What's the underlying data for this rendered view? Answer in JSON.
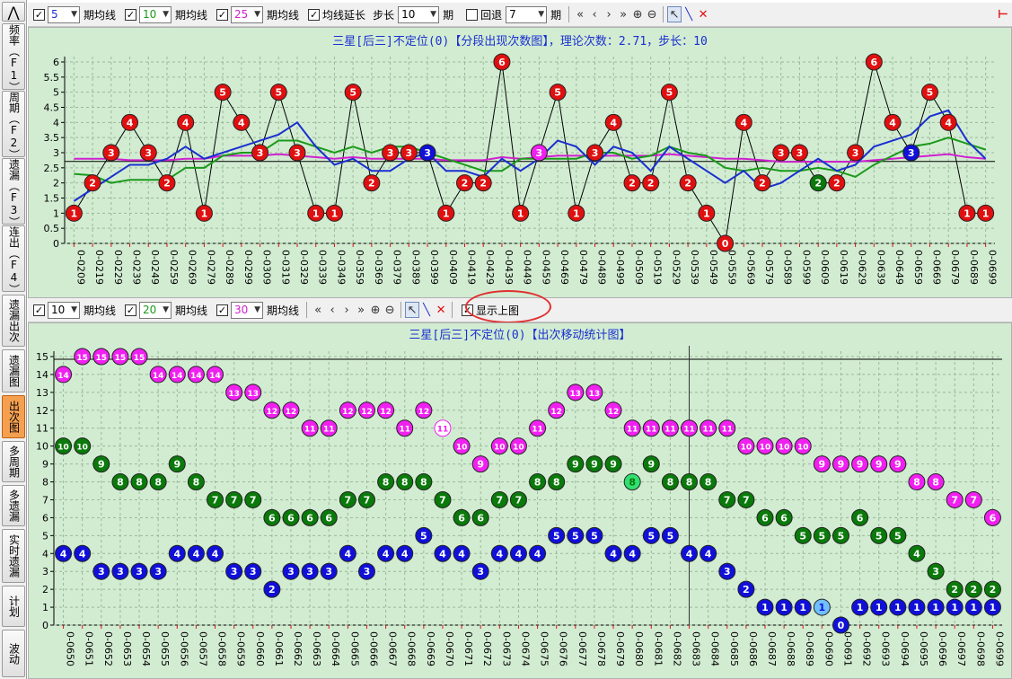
{
  "sidebar": {
    "items": [
      {
        "label": "⋀",
        "active": false
      },
      {
        "label": "频率（F1）",
        "active": false
      },
      {
        "label": "周期（F2）",
        "active": false
      },
      {
        "label": "遗漏（F3）",
        "active": false
      },
      {
        "label": "连出（F4）",
        "active": false
      },
      {
        "label": "遗漏出次",
        "active": false
      },
      {
        "label": "遗漏图",
        "active": false
      },
      {
        "label": "出次图",
        "active": true
      },
      {
        "label": "多周期",
        "active": false
      },
      {
        "label": "多遗漏",
        "active": false
      },
      {
        "label": "实时遗漏",
        "active": false
      },
      {
        "label": "计划",
        "active": false
      },
      {
        "label": "波动",
        "active": false
      }
    ]
  },
  "toolbar1": {
    "ma1": {
      "value": "5",
      "label": "期均线",
      "color": "#1a2fd0"
    },
    "ma2": {
      "value": "10",
      "label": "期均线",
      "color": "#1a9a1a"
    },
    "ma3": {
      "value": "25",
      "label": "期均线",
      "color": "#d020d0"
    },
    "extend_label": "均线延长",
    "step_label": "步长",
    "step_value": "10",
    "step_unit": "期",
    "back_label": "回退",
    "back_value": "7",
    "back_unit": "期"
  },
  "toolbar2": {
    "ma1": {
      "value": "10",
      "label": "期均线",
      "color": "#000000"
    },
    "ma2": {
      "value": "20",
      "label": "期均线",
      "color": "#1a9a1a"
    },
    "ma3": {
      "value": "30",
      "label": "期均线",
      "color": "#d020d0"
    },
    "show_top_label": "显示上图"
  },
  "colors": {
    "bg": "#d2ecd2",
    "red": "#e01010",
    "blue": "#1010d8",
    "green": "#0a7a0a",
    "magenta": "#f020f0",
    "title": "#1a2fd0"
  },
  "chart_data": [
    {
      "type": "line",
      "title": "三星[后三]不定位(0)【分段出现次数图】，理论次数：2.71，步长：10",
      "ylim": [
        0,
        6
      ],
      "yticks": [
        "0",
        "0.5",
        "1",
        "1.5",
        "2",
        "2.5",
        "3",
        "3.5",
        "4",
        "4.5",
        "5",
        "5.5",
        "6"
      ],
      "reference_value": 2.71,
      "x": [
        "0-0209",
        "0-0219",
        "0-0229",
        "0-0239",
        "0-0249",
        "0-0259",
        "0-0269",
        "0-0279",
        "0-0289",
        "0-0299",
        "0-0309",
        "0-0319",
        "0-0329",
        "0-0339",
        "0-0349",
        "0-0359",
        "0-0369",
        "0-0379",
        "0-0389",
        "0-0399",
        "0-0409",
        "0-0419",
        "0-0429",
        "0-0439",
        "0-0449",
        "0-0459",
        "0-0469",
        "0-0479",
        "0-0489",
        "0-0499",
        "0-0509",
        "0-0519",
        "0-0529",
        "0-0539",
        "0-0549",
        "0-0559",
        "0-0569",
        "0-0579",
        "0-0589",
        "0-0599",
        "0-0609",
        "0-0619",
        "0-0629",
        "0-0639",
        "0-0649",
        "0-0659",
        "0-0669",
        "0-0679",
        "0-0689",
        "0-0699"
      ],
      "values": [
        1,
        2,
        3,
        4,
        3,
        2,
        4,
        1,
        5,
        4,
        3,
        5,
        3,
        1,
        1,
        5,
        2,
        3,
        3,
        3,
        1,
        2,
        2,
        6,
        1,
        3,
        5,
        1,
        3,
        4,
        2,
        2,
        5,
        2,
        1,
        0,
        4,
        2,
        3,
        3,
        2,
        2,
        3,
        6,
        4,
        3,
        5,
        4,
        1,
        1
      ],
      "point_colors": [
        "r",
        "r",
        "r",
        "r",
        "r",
        "r",
        "r",
        "r",
        "r",
        "r",
        "r",
        "r",
        "r",
        "r",
        "r",
        "r",
        "r",
        "r",
        "r",
        "b",
        "r",
        "r",
        "r",
        "r",
        "r",
        "m",
        "r",
        "r",
        "r",
        "r",
        "r",
        "r",
        "r",
        "r",
        "r",
        "r",
        "r",
        "r",
        "r",
        "r",
        "g",
        "r",
        "r",
        "r",
        "r",
        "b",
        "r",
        "r",
        "r",
        "r"
      ],
      "series": [
        {
          "name": "5期均线",
          "color": "#1a2fd0",
          "values": [
            1.4,
            1.8,
            2.2,
            2.6,
            2.6,
            2.8,
            3.2,
            2.8,
            3.0,
            3.2,
            3.4,
            3.6,
            4.0,
            3.2,
            2.6,
            2.8,
            2.4,
            2.4,
            2.8,
            3.0,
            2.4,
            2.4,
            2.2,
            2.8,
            2.4,
            2.8,
            3.4,
            3.2,
            2.6,
            3.2,
            3.0,
            2.4,
            3.2,
            2.8,
            2.4,
            2.0,
            2.4,
            1.8,
            2.0,
            2.4,
            2.8,
            2.4,
            2.6,
            3.2,
            3.4,
            3.6,
            4.2,
            4.4,
            3.4,
            2.8
          ]
        },
        {
          "name": "10期均线",
          "color": "#1a9a1a",
          "values": [
            2.3,
            2.25,
            2.0,
            2.1,
            2.1,
            2.1,
            2.5,
            2.5,
            2.9,
            3.0,
            3.0,
            3.4,
            3.4,
            3.2,
            3.0,
            3.2,
            3.0,
            3.2,
            3.2,
            3.0,
            2.8,
            2.6,
            2.4,
            2.4,
            2.8,
            2.8,
            2.8,
            2.8,
            3.0,
            3.0,
            2.8,
            2.9,
            3.2,
            3.0,
            2.9,
            2.5,
            2.4,
            2.5,
            2.4,
            2.4,
            2.5,
            2.4,
            2.2,
            2.6,
            2.9,
            3.2,
            3.3,
            3.5,
            3.3,
            3.1
          ]
        },
        {
          "name": "25期均线",
          "color": "#d020d0",
          "values": [
            2.8,
            2.8,
            2.8,
            2.75,
            2.75,
            2.75,
            2.8,
            2.8,
            2.9,
            2.9,
            2.9,
            2.95,
            2.9,
            2.85,
            2.8,
            2.85,
            2.8,
            2.8,
            2.8,
            2.8,
            2.75,
            2.75,
            2.75,
            2.85,
            2.8,
            2.85,
            2.9,
            2.9,
            2.9,
            2.9,
            2.9,
            2.9,
            2.95,
            2.9,
            2.85,
            2.8,
            2.8,
            2.75,
            2.7,
            2.7,
            2.7,
            2.7,
            2.7,
            2.75,
            2.8,
            2.85,
            2.9,
            2.95,
            2.85,
            2.8
          ]
        }
      ]
    },
    {
      "type": "line",
      "title": "三星[后三]不定位(0)【出次移动统计图】",
      "ylim": [
        0,
        15
      ],
      "yticks": [
        "0",
        "1",
        "2",
        "3",
        "4",
        "5",
        "6",
        "7",
        "8",
        "9",
        "10",
        "11",
        "12",
        "13",
        "14",
        "15"
      ],
      "hline": 14.85,
      "vline_index": 33,
      "x": [
        "0-0650",
        "0-0651",
        "0-0652",
        "0-0653",
        "0-0654",
        "0-0655",
        "0-0656",
        "0-0657",
        "0-0658",
        "0-0659",
        "0-0660",
        "0-0661",
        "0-0662",
        "0-0663",
        "0-0664",
        "0-0665",
        "0-0666",
        "0-0667",
        "0-0668",
        "0-0669",
        "0-0670",
        "0-0671",
        "0-0672",
        "0-0673",
        "0-0674",
        "0-0675",
        "0-0676",
        "0-0677",
        "0-0678",
        "0-0679",
        "0-0680",
        "0-0681",
        "0-0682",
        "0-0683",
        "0-0684",
        "0-0685",
        "0-0686",
        "0-0687",
        "0-0688",
        "0-0689",
        "0-0690",
        "0-0691",
        "0-0692",
        "0-0693",
        "0-0694",
        "0-0695",
        "0-0696",
        "0-0697",
        "0-0698",
        "0-0699"
      ],
      "series": [
        {
          "name": "30期",
          "color": "#f020f0",
          "values": [
            14,
            15,
            15,
            15,
            15,
            14,
            14,
            14,
            14,
            13,
            13,
            12,
            12,
            11,
            11,
            12,
            12,
            12,
            11,
            12,
            11,
            10,
            9,
            10,
            10,
            11,
            12,
            13,
            13,
            12,
            11,
            11,
            11,
            11,
            11,
            11,
            10,
            10,
            10,
            10,
            9,
            9,
            9,
            9,
            9,
            8,
            8,
            7,
            7,
            6
          ],
          "hollow_index": 20
        },
        {
          "name": "20期",
          "color": "#0a7a0a",
          "values": [
            10,
            10,
            9,
            8,
            8,
            8,
            9,
            8,
            7,
            7,
            7,
            6,
            6,
            6,
            6,
            7,
            7,
            8,
            8,
            8,
            7,
            6,
            6,
            7,
            7,
            8,
            8,
            9,
            9,
            9,
            8,
            9,
            8,
            8,
            8,
            7,
            7,
            6,
            6,
            5,
            5,
            5,
            6,
            5,
            5,
            4,
            3,
            2,
            2,
            2
          ],
          "highlight_index": 30
        },
        {
          "name": "10期",
          "color": "#1010d8",
          "values": [
            4,
            4,
            3,
            3,
            3,
            3,
            4,
            4,
            4,
            3,
            3,
            2,
            3,
            3,
            3,
            4,
            3,
            4,
            4,
            5,
            4,
            4,
            3,
            4,
            4,
            4,
            5,
            5,
            5,
            4,
            4,
            5,
            5,
            4,
            4,
            3,
            2,
            1,
            1,
            1,
            1,
            0,
            1,
            1,
            1,
            1,
            1,
            1,
            1,
            1
          ],
          "highlight_index": 40
        }
      ]
    }
  ]
}
